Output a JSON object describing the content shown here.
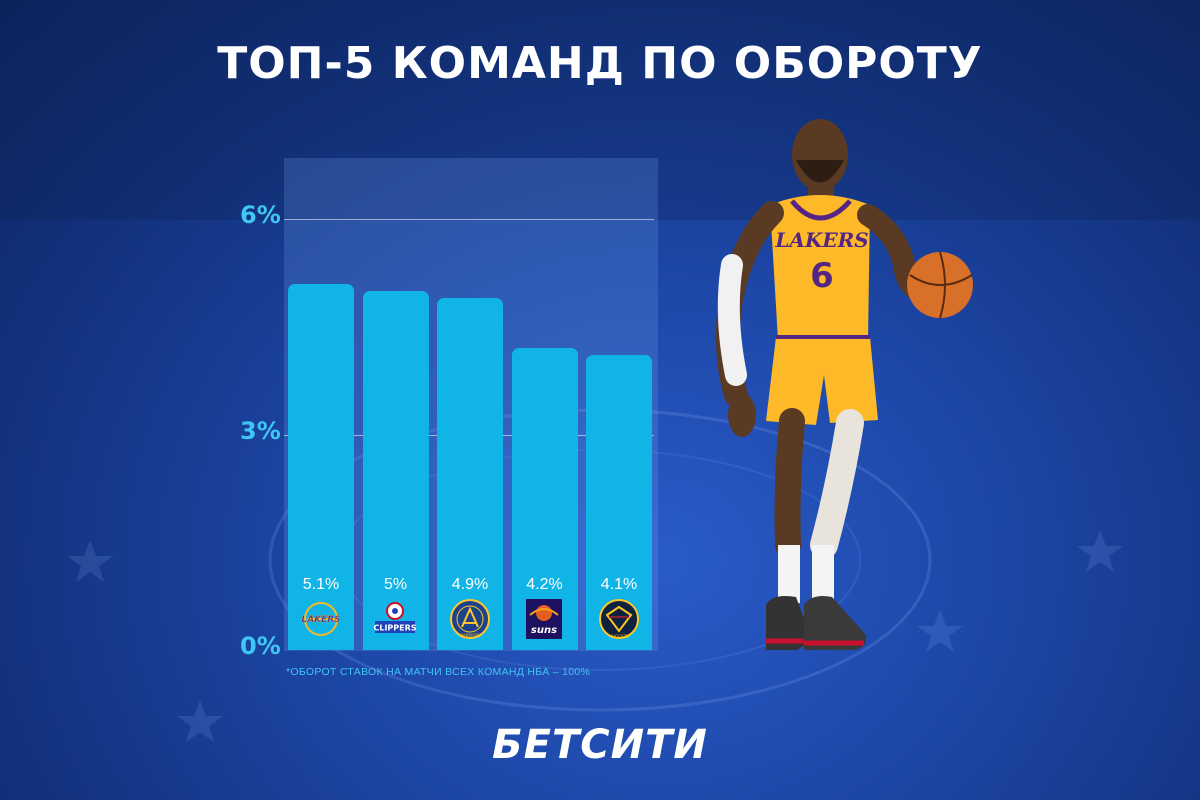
{
  "title": "ТОП-5 КОМАНД ПО ОБОРОТУ",
  "footnote": "*ОБОРОТ СТАВОК НА МАТЧИ ВСЕХ КОМАНД НБА – 100%",
  "brand": "БЕТСИТИ",
  "colors": {
    "bar": "#11b4e6",
    "tick": "#3ec7f5",
    "background": "#1d47a8"
  },
  "chart_data": {
    "type": "bar",
    "categories": [
      "lakers-logo",
      "clippers-logo",
      "warriors-logo",
      "suns-logo",
      "nuggets-logo"
    ],
    "values": [
      5.1,
      5,
      4.9,
      4.2,
      4.1
    ],
    "value_labels": [
      "5.1%",
      "5%",
      "4.9%",
      "4.2%",
      "4.1%"
    ],
    "yticks": [
      "0%",
      "3%",
      "6%"
    ],
    "ytick_values": [
      0,
      3,
      6
    ],
    "ylim": [
      0,
      6
    ],
    "grid": true,
    "title": "ТОП-5 КОМАНД ПО ОБОРОТУ"
  },
  "logos": {
    "lakers": "LAKERS",
    "clippers": "CLIPPERS",
    "warriors": "WARRIORS",
    "suns": "suns",
    "nuggets": "NUGGETS"
  },
  "player": {
    "jersey_team": "LAKERS",
    "jersey_number": "6"
  }
}
